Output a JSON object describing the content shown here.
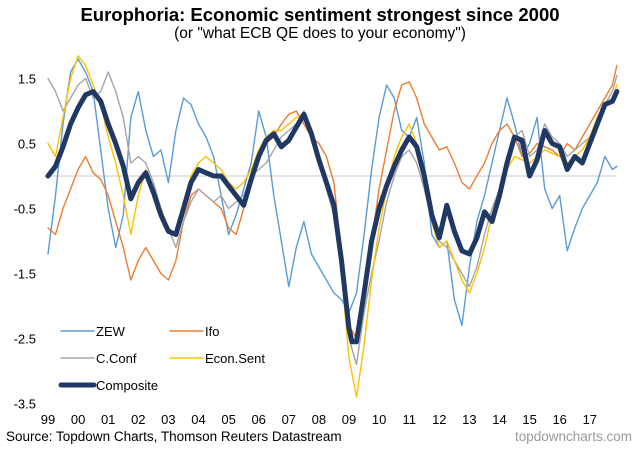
{
  "chart_data": {
    "type": "line",
    "title": "Europhoria: Economic sentiment strongest since 2000",
    "subtitle": "(or \"what ECB QE does to your economy\")",
    "xlabel": "",
    "ylabel": "",
    "x_ticks": [
      {
        "value": 1999,
        "label": "99"
      },
      {
        "value": 2000,
        "label": "00"
      },
      {
        "value": 2001,
        "label": "01"
      },
      {
        "value": 2002,
        "label": "02"
      },
      {
        "value": 2003,
        "label": "03"
      },
      {
        "value": 2004,
        "label": "04"
      },
      {
        "value": 2005,
        "label": "05"
      },
      {
        "value": 2006,
        "label": "06"
      },
      {
        "value": 2007,
        "label": "07"
      },
      {
        "value": 2008,
        "label": "08"
      },
      {
        "value": 2009,
        "label": "09"
      },
      {
        "value": 2010,
        "label": "10"
      },
      {
        "value": 2011,
        "label": "11"
      },
      {
        "value": 2012,
        "label": "12"
      },
      {
        "value": 2013,
        "label": "13"
      },
      {
        "value": 2014,
        "label": "14"
      },
      {
        "value": 2015,
        "label": "15"
      },
      {
        "value": 2016,
        "label": "16"
      },
      {
        "value": 2017,
        "label": "17"
      }
    ],
    "y_ticks": [
      {
        "value": 1.5,
        "label": "1.5"
      },
      {
        "value": 0.5,
        "label": "0.5"
      },
      {
        "value": -0.5,
        "label": "-0.5"
      },
      {
        "value": -1.5,
        "label": "-1.5"
      },
      {
        "value": -2.5,
        "label": "-2.5"
      },
      {
        "value": -3.5,
        "label": "-3.5"
      }
    ],
    "xlim": [
      1999,
      2018
    ],
    "ylim": [
      -3.5,
      2.0
    ],
    "zero_line": true,
    "grid": false,
    "legend_position": "bottom-left",
    "series": [
      {
        "name": "ZEW",
        "color": "#5b9bd5",
        "width": "thin",
        "x": [
          1999.0,
          1999.25,
          1999.5,
          1999.75,
          2000.0,
          2000.25,
          2000.5,
          2000.75,
          2001.0,
          2001.25,
          2001.5,
          2001.75,
          2002.0,
          2002.25,
          2002.5,
          2002.75,
          2003.0,
          2003.25,
          2003.5,
          2003.75,
          2004.0,
          2004.25,
          2004.5,
          2004.75,
          2005.0,
          2005.25,
          2005.5,
          2005.75,
          2006.0,
          2006.25,
          2006.5,
          2006.75,
          2007.0,
          2007.25,
          2007.5,
          2007.75,
          2008.0,
          2008.25,
          2008.5,
          2008.75,
          2009.0,
          2009.25,
          2009.5,
          2009.75,
          2010.0,
          2010.25,
          2010.5,
          2010.75,
          2011.0,
          2011.25,
          2011.5,
          2011.75,
          2012.0,
          2012.25,
          2012.5,
          2012.75,
          2013.0,
          2013.25,
          2013.5,
          2013.75,
          2014.0,
          2014.25,
          2014.5,
          2014.75,
          2015.0,
          2015.25,
          2015.5,
          2015.75,
          2016.0,
          2016.25,
          2016.5,
          2016.75,
          2017.0,
          2017.25,
          2017.5,
          2017.75,
          2017.9
        ],
        "values": [
          -1.2,
          -0.3,
          0.8,
          1.6,
          1.8,
          1.6,
          1.3,
          0.4,
          -0.5,
          -1.1,
          -0.6,
          0.9,
          1.3,
          0.7,
          0.3,
          0.4,
          -0.1,
          0.7,
          1.2,
          1.1,
          0.8,
          0.6,
          0.3,
          -0.3,
          -0.9,
          -0.6,
          -0.2,
          0.2,
          1.0,
          0.6,
          -0.3,
          -1.0,
          -1.7,
          -1.1,
          -0.7,
          -1.2,
          -1.4,
          -1.6,
          -1.8,
          -1.9,
          -2.1,
          -1.8,
          -0.9,
          0.1,
          0.9,
          1.4,
          1.2,
          0.7,
          0.6,
          0.9,
          0.2,
          -0.9,
          -1.1,
          -1.0,
          -1.9,
          -2.3,
          -1.4,
          -0.7,
          -0.3,
          0.2,
          0.7,
          1.2,
          0.8,
          0.3,
          0.5,
          0.9,
          -0.2,
          -0.5,
          -0.3,
          -1.15,
          -0.8,
          -0.5,
          -0.3,
          -0.1,
          0.3,
          0.1,
          0.15
        ]
      },
      {
        "name": "Ifo",
        "color": "#ed7d31",
        "width": "thin",
        "x": [
          1999.0,
          1999.25,
          1999.5,
          1999.75,
          2000.0,
          2000.25,
          2000.5,
          2000.75,
          2001.0,
          2001.25,
          2001.5,
          2001.75,
          2002.0,
          2002.25,
          2002.5,
          2002.75,
          2003.0,
          2003.25,
          2003.5,
          2003.75,
          2004.0,
          2004.25,
          2004.5,
          2004.75,
          2005.0,
          2005.25,
          2005.5,
          2005.75,
          2006.0,
          2006.25,
          2006.5,
          2006.75,
          2007.0,
          2007.25,
          2007.5,
          2007.75,
          2008.0,
          2008.25,
          2008.5,
          2008.75,
          2009.0,
          2009.25,
          2009.5,
          2009.75,
          2010.0,
          2010.25,
          2010.5,
          2010.75,
          2011.0,
          2011.25,
          2011.5,
          2011.75,
          2012.0,
          2012.25,
          2012.5,
          2012.75,
          2013.0,
          2013.25,
          2013.5,
          2013.75,
          2014.0,
          2014.25,
          2014.5,
          2014.75,
          2015.0,
          2015.25,
          2015.5,
          2015.75,
          2016.0,
          2016.25,
          2016.5,
          2016.75,
          2017.0,
          2017.25,
          2017.5,
          2017.75,
          2017.9
        ],
        "values": [
          -0.8,
          -0.9,
          -0.5,
          -0.2,
          0.1,
          0.3,
          0.05,
          -0.05,
          -0.3,
          -0.7,
          -1.1,
          -1.6,
          -1.3,
          -1.1,
          -1.3,
          -1.5,
          -1.6,
          -1.3,
          -0.7,
          -0.3,
          -0.2,
          -0.3,
          -0.4,
          -0.5,
          -0.8,
          -0.9,
          -0.5,
          -0.1,
          0.3,
          0.5,
          0.6,
          0.8,
          0.95,
          1.0,
          0.8,
          0.6,
          0.5,
          0.3,
          -0.1,
          -1.2,
          -2.3,
          -2.5,
          -1.8,
          -1.0,
          -0.2,
          0.4,
          1.0,
          1.4,
          1.45,
          1.2,
          0.8,
          0.6,
          0.4,
          0.45,
          0.2,
          -0.1,
          -0.2,
          0.0,
          0.2,
          0.5,
          0.7,
          0.8,
          0.6,
          0.3,
          0.35,
          0.5,
          0.45,
          0.4,
          0.3,
          0.5,
          0.4,
          0.6,
          0.8,
          1.0,
          1.2,
          1.4,
          1.7
        ]
      },
      {
        "name": "C.Conf",
        "color": "#a5a5a5",
        "width": "thin",
        "x": [
          1999.0,
          1999.25,
          1999.5,
          1999.75,
          2000.0,
          2000.25,
          2000.5,
          2000.75,
          2001.0,
          2001.25,
          2001.5,
          2001.75,
          2002.0,
          2002.25,
          2002.5,
          2002.75,
          2003.0,
          2003.25,
          2003.5,
          2003.75,
          2004.0,
          2004.25,
          2004.5,
          2004.75,
          2005.0,
          2005.25,
          2005.5,
          2005.75,
          2006.0,
          2006.25,
          2006.5,
          2006.75,
          2007.0,
          2007.25,
          2007.5,
          2007.75,
          2008.0,
          2008.25,
          2008.5,
          2008.75,
          2009.0,
          2009.25,
          2009.5,
          2009.75,
          2010.0,
          2010.25,
          2010.5,
          2010.75,
          2011.0,
          2011.25,
          2011.5,
          2011.75,
          2012.0,
          2012.25,
          2012.5,
          2012.75,
          2013.0,
          2013.25,
          2013.5,
          2013.75,
          2014.0,
          2014.25,
          2014.5,
          2014.75,
          2015.0,
          2015.25,
          2015.5,
          2015.75,
          2016.0,
          2016.25,
          2016.5,
          2016.75,
          2017.0,
          2017.25,
          2017.5,
          2017.75,
          2017.9
        ],
        "values": [
          1.5,
          1.3,
          1.0,
          1.2,
          1.4,
          1.5,
          1.2,
          1.3,
          1.6,
          1.3,
          0.9,
          0.2,
          0.3,
          0.2,
          -0.1,
          -0.5,
          -0.8,
          -1.1,
          -0.7,
          -0.4,
          -0.2,
          -0.3,
          -0.4,
          -0.3,
          -0.5,
          -0.4,
          -0.3,
          0.0,
          0.1,
          0.2,
          0.4,
          0.6,
          0.7,
          0.8,
          1.0,
          0.6,
          0.2,
          -0.2,
          -0.6,
          -1.4,
          -2.5,
          -2.9,
          -2.1,
          -1.5,
          -1.0,
          -0.4,
          0.0,
          0.3,
          0.4,
          0.2,
          -0.2,
          -0.7,
          -1.0,
          -1.1,
          -1.3,
          -1.5,
          -1.7,
          -1.4,
          -0.9,
          -0.5,
          -0.2,
          0.2,
          0.6,
          0.7,
          0.3,
          0.4,
          0.8,
          0.6,
          0.5,
          0.3,
          0.4,
          0.5,
          0.6,
          0.9,
          1.1,
          1.3,
          1.55
        ]
      },
      {
        "name": "Econ.Sent",
        "color": "#ffc000",
        "width": "thin",
        "x": [
          1999.0,
          1999.25,
          1999.5,
          1999.75,
          2000.0,
          2000.25,
          2000.5,
          2000.75,
          2001.0,
          2001.25,
          2001.5,
          2001.75,
          2002.0,
          2002.25,
          2002.5,
          2002.75,
          2003.0,
          2003.25,
          2003.5,
          2003.75,
          2004.0,
          2004.25,
          2004.5,
          2004.75,
          2005.0,
          2005.25,
          2005.5,
          2005.75,
          2006.0,
          2006.25,
          2006.5,
          2006.75,
          2007.0,
          2007.25,
          2007.5,
          2007.75,
          2008.0,
          2008.25,
          2008.5,
          2008.75,
          2009.0,
          2009.25,
          2009.5,
          2009.75,
          2010.0,
          2010.25,
          2010.5,
          2010.75,
          2011.0,
          2011.25,
          2011.5,
          2011.75,
          2012.0,
          2012.25,
          2012.5,
          2012.75,
          2013.0,
          2013.25,
          2013.5,
          2013.75,
          2014.0,
          2014.25,
          2014.5,
          2014.75,
          2015.0,
          2015.25,
          2015.5,
          2015.75,
          2016.0,
          2016.25,
          2016.5,
          2016.75,
          2017.0,
          2017.25,
          2017.5,
          2017.75,
          2017.9
        ],
        "values": [
          0.5,
          0.3,
          0.9,
          1.5,
          1.85,
          1.7,
          1.4,
          1.1,
          0.6,
          0.2,
          -0.3,
          -0.9,
          -0.3,
          0.1,
          -0.2,
          -0.5,
          -0.8,
          -0.9,
          -0.4,
          0.0,
          0.2,
          0.3,
          0.2,
          0.1,
          -0.1,
          -0.2,
          -0.1,
          0.1,
          0.4,
          0.6,
          0.7,
          0.7,
          0.8,
          0.9,
          0.9,
          0.7,
          0.3,
          -0.1,
          -0.5,
          -1.5,
          -2.8,
          -3.4,
          -2.6,
          -1.6,
          -0.8,
          -0.2,
          0.3,
          0.6,
          0.8,
          0.5,
          0.0,
          -0.7,
          -1.1,
          -1.0,
          -1.3,
          -1.6,
          -1.8,
          -1.5,
          -1.1,
          -0.6,
          -0.2,
          0.1,
          0.3,
          0.25,
          0.2,
          0.3,
          0.4,
          0.35,
          0.3,
          0.2,
          0.3,
          0.4,
          0.6,
          0.9,
          1.1,
          1.2,
          1.4
        ]
      },
      {
        "name": "Composite",
        "color": "#1f3864",
        "width": "thick",
        "x": [
          1999.0,
          1999.25,
          1999.5,
          1999.75,
          2000.0,
          2000.25,
          2000.5,
          2000.75,
          2001.0,
          2001.25,
          2001.5,
          2001.75,
          2002.0,
          2002.25,
          2002.5,
          2002.75,
          2003.0,
          2003.25,
          2003.5,
          2003.75,
          2004.0,
          2004.25,
          2004.5,
          2004.75,
          2005.0,
          2005.25,
          2005.5,
          2005.75,
          2006.0,
          2006.25,
          2006.5,
          2006.75,
          2007.0,
          2007.25,
          2007.5,
          2007.75,
          2008.0,
          2008.25,
          2008.5,
          2008.75,
          2009.0,
          2009.1,
          2009.25,
          2009.5,
          2009.75,
          2010.0,
          2010.25,
          2010.5,
          2010.75,
          2011.0,
          2011.25,
          2011.5,
          2011.75,
          2012.0,
          2012.25,
          2012.5,
          2012.75,
          2013.0,
          2013.25,
          2013.5,
          2013.75,
          2014.0,
          2014.25,
          2014.5,
          2014.75,
          2015.0,
          2015.25,
          2015.5,
          2015.75,
          2016.0,
          2016.25,
          2016.5,
          2016.75,
          2017.0,
          2017.25,
          2017.5,
          2017.75,
          2017.9
        ],
        "values": [
          0.0,
          0.15,
          0.45,
          0.8,
          1.05,
          1.25,
          1.3,
          1.15,
          0.8,
          0.5,
          0.15,
          -0.35,
          -0.1,
          0.05,
          -0.25,
          -0.6,
          -0.85,
          -0.9,
          -0.5,
          -0.1,
          0.1,
          0.05,
          0.0,
          0.0,
          -0.15,
          -0.3,
          -0.45,
          -0.05,
          0.3,
          0.55,
          0.65,
          0.45,
          0.55,
          0.75,
          0.95,
          0.65,
          0.25,
          -0.1,
          -0.45,
          -1.3,
          -2.35,
          -2.55,
          -2.55,
          -1.8,
          -1.0,
          -0.5,
          -0.15,
          0.15,
          0.4,
          0.6,
          0.45,
          0.0,
          -0.6,
          -0.95,
          -0.45,
          -0.85,
          -1.15,
          -1.2,
          -0.95,
          -0.55,
          -0.7,
          -0.3,
          0.2,
          0.6,
          0.55,
          0.0,
          0.25,
          0.7,
          0.5,
          0.45,
          0.1,
          0.3,
          0.2,
          0.5,
          0.8,
          1.1,
          1.15,
          1.3
        ]
      }
    ]
  },
  "source": "Source: Topdown Charts, Thomson Reuters Datastream",
  "brand": "topdowncharts.com"
}
